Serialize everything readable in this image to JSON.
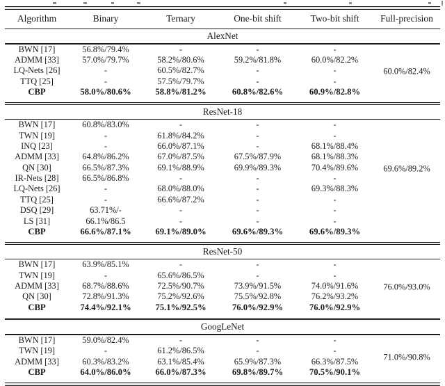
{
  "table": {
    "columns": [
      "Algorithm",
      "Binary",
      "Ternary",
      "One-bit shift",
      "Two-bit shift",
      "Full-precision"
    ],
    "sections": [
      {
        "name": "AlexNet",
        "full_precision": "60.0%/82.4%",
        "rows": [
          {
            "algorithm": "BWN [17]",
            "values": [
              "56.8%/79.4%",
              "-",
              "-",
              "-"
            ],
            "bold": false
          },
          {
            "algorithm": "ADMM [33]",
            "values": [
              "57.0%/79.7%",
              "58.2%/80.6%",
              "59.2%/81.8%",
              "60.0%/82.2%"
            ],
            "bold": false
          },
          {
            "algorithm": "LQ-Nets [26]",
            "values": [
              "-",
              "60.5%/82.7%",
              "-",
              "-"
            ],
            "bold": false
          },
          {
            "algorithm": "TTQ [25]",
            "values": [
              "-",
              "57.5%/79.7%",
              "-",
              "-"
            ],
            "bold": false
          },
          {
            "algorithm": "CBP",
            "values": [
              "58.0%/80.6%",
              "58.8%/81.2%",
              "60.8%/82.6%",
              "60.9%/82.8%"
            ],
            "bold": true
          }
        ]
      },
      {
        "name": "ResNet-18",
        "full_precision": "69.6%/89.2%",
        "rows": [
          {
            "algorithm": "BWN [17]",
            "values": [
              "60.8%/83.0%",
              "-",
              "-",
              "-"
            ],
            "bold": false
          },
          {
            "algorithm": "TWN [19]",
            "values": [
              "-",
              "61.8%/84.2%",
              "-",
              "-"
            ],
            "bold": false
          },
          {
            "algorithm": "INQ [23]",
            "values": [
              "-",
              "66.0%/87.1%",
              "-",
              "68.1%/88.4%"
            ],
            "bold": false
          },
          {
            "algorithm": "ADMM [33]",
            "values": [
              "64.8%/86.2%",
              "67.0%/87.5%",
              "67.5%/87.9%",
              "68.1%/88.3%"
            ],
            "bold": false
          },
          {
            "algorithm": "QN [30]",
            "values": [
              "66.5%/87.3%",
              "69.1%/88.9%",
              "69.9%/89.3%",
              "70.4%/89.6%"
            ],
            "bold": false
          },
          {
            "algorithm": "IR-Nets [28]",
            "values": [
              "66.5%/86.8%",
              "-",
              "-",
              "-"
            ],
            "bold": false
          },
          {
            "algorithm": "LQ-Nets [26]",
            "values": [
              "-",
              "68.0%/88.0%",
              "-",
              "69.3%/88.3%"
            ],
            "bold": false
          },
          {
            "algorithm": "TTQ [25]",
            "values": [
              "-",
              "66.6%/87.2%",
              "-",
              "-"
            ],
            "bold": false
          },
          {
            "algorithm": "DSQ [29]",
            "values": [
              "63.71%/-",
              "-",
              "-",
              "-"
            ],
            "bold": false
          },
          {
            "algorithm": "LS [31]",
            "values": [
              "66.1%/86.5",
              "-",
              "-",
              "-"
            ],
            "bold": false
          },
          {
            "algorithm": "CBP",
            "values": [
              "66.6%/87.1%",
              "69.1%/89.0%",
              "69.6%/89.3%",
              "69.6%/89.3%"
            ],
            "bold": true
          }
        ]
      },
      {
        "name": "ResNet-50",
        "full_precision": "76.0%/93.0%",
        "rows": [
          {
            "algorithm": "BWN [17]",
            "values": [
              "63.9%/85.1%",
              "-",
              "-",
              "-"
            ],
            "bold": false
          },
          {
            "algorithm": "TWN [19]",
            "values": [
              "-",
              "65.6%/86.5%",
              "-",
              "-"
            ],
            "bold": false
          },
          {
            "algorithm": "ADMM [33]",
            "values": [
              "68.7%/88.6%",
              "72.5%/90.7%",
              "73.9%/91.5%",
              "74.0%/91.6%"
            ],
            "bold": false
          },
          {
            "algorithm": "QN [30]",
            "values": [
              "72.8%/91.3%",
              "75.2%/92.6%",
              "75.5%/92.8%",
              "76.2%/93.2%"
            ],
            "bold": false
          },
          {
            "algorithm": "CBP",
            "values": [
              "74.4%/92.1%",
              "75.1%/92.5%",
              "76.0%/92.9%",
              "76.0%/92.9%"
            ],
            "bold": true
          }
        ]
      },
      {
        "name": "GoogLeNet",
        "full_precision": "71.0%/90.8%",
        "rows": [
          {
            "algorithm": "BWN [17]",
            "values": [
              "59.0%/82.4%",
              "-",
              "-",
              "-"
            ],
            "bold": false
          },
          {
            "algorithm": "TWN [19]",
            "values": [
              "-",
              "61.2%/86.5%",
              "-",
              "-"
            ],
            "bold": false
          },
          {
            "algorithm": "ADMM [33]",
            "values": [
              "60.3%/83.2%",
              "63.1%/85.4%",
              "65.9%/87.3%",
              "66.3%/87.5%"
            ],
            "bold": false
          },
          {
            "algorithm": "CBP",
            "values": [
              "64.0%/86.0%",
              "66.0%/87.3%",
              "69.8%/89.7%",
              "70.5%/90.1%"
            ],
            "bold": true
          }
        ]
      }
    ]
  }
}
